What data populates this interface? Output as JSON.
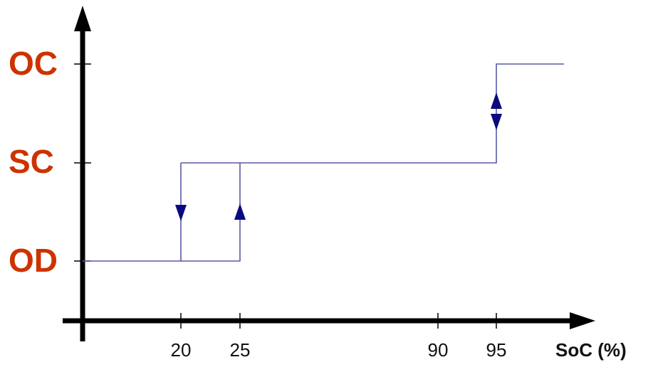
{
  "colors": {
    "state_label": "#cc3300",
    "curve": "#5a5aa8",
    "arrow": "#0a0a80",
    "axis": "#000000"
  },
  "y_axis": {
    "states": [
      {
        "label": "OC"
      },
      {
        "label": "SC"
      },
      {
        "label": "OD"
      }
    ]
  },
  "x_axis": {
    "title": "SoC (%)",
    "ticks": [
      "20",
      "25",
      "90",
      "95"
    ]
  },
  "chart_data": {
    "type": "line",
    "xlabel": "SoC (%)",
    "ylabel": "",
    "y_levels": [
      "OD",
      "SC",
      "OC"
    ],
    "x_ticks": [
      20,
      25,
      90,
      95
    ],
    "curve": {
      "lower_path": [
        {
          "x": 0,
          "y": "OD"
        },
        {
          "x": 20,
          "y": "OD"
        },
        {
          "x": 20,
          "y": "SC"
        }
      ],
      "upper_path": [
        {
          "x": 25,
          "y": "OD"
        },
        {
          "x": 25,
          "y": "SC"
        },
        {
          "x": 95,
          "y": "SC"
        },
        {
          "x": 95,
          "y": "OC"
        },
        {
          "x": 100,
          "y": "OC"
        }
      ]
    },
    "transitions": [
      {
        "at": 20,
        "from": "SC",
        "to": "OD",
        "direction": "down"
      },
      {
        "at": 25,
        "from": "OD",
        "to": "SC",
        "direction": "up"
      },
      {
        "at": 95,
        "from": "SC",
        "to": "OC",
        "direction": "up"
      },
      {
        "at": 95,
        "from": "OC",
        "to": "SC",
        "direction": "down"
      }
    ]
  }
}
